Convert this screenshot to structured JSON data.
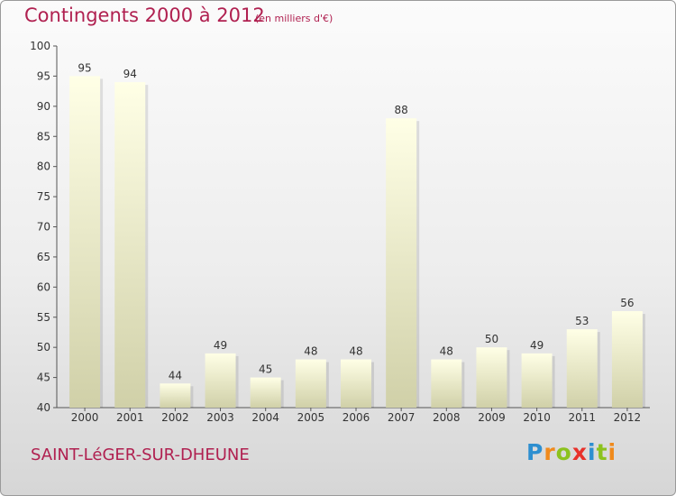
{
  "header": {
    "title": "Contingents 2000 à 2012",
    "subtitle": "(en milliers d'€)"
  },
  "footer": {
    "commune": "SAINT-LéGER-SUR-DHEUNE",
    "brand_letters": [
      "P",
      "r",
      "o",
      "x",
      "i",
      "t",
      "i"
    ],
    "brand_colors": [
      "#2d8fd0",
      "#f08a1c",
      "#8cc21e",
      "#e8312a",
      "#2d8fd0",
      "#8cc21e",
      "#f08a1c"
    ]
  },
  "colors": {
    "title": "#b02050",
    "bar_light": "#ffffe6",
    "bar_dark": "#d0d0a8",
    "axis": "#555555",
    "label": "#333333"
  },
  "chart_data": {
    "type": "bar",
    "title": "Contingents 2000 à 2012",
    "subtitle": "(en milliers d'€)",
    "xlabel": "",
    "ylabel": "",
    "categories": [
      "2000",
      "2001",
      "2002",
      "2003",
      "2004",
      "2005",
      "2006",
      "2007",
      "2008",
      "2009",
      "2010",
      "2011",
      "2012"
    ],
    "values": [
      95,
      94,
      44,
      49,
      45,
      48,
      48,
      88,
      48,
      50,
      49,
      53,
      56
    ],
    "ylim": [
      40,
      100
    ],
    "yticks": [
      40,
      45,
      50,
      55,
      60,
      65,
      70,
      75,
      80,
      85,
      90,
      95,
      100
    ],
    "data_labels": true,
    "grid": false,
    "legend": "none"
  }
}
